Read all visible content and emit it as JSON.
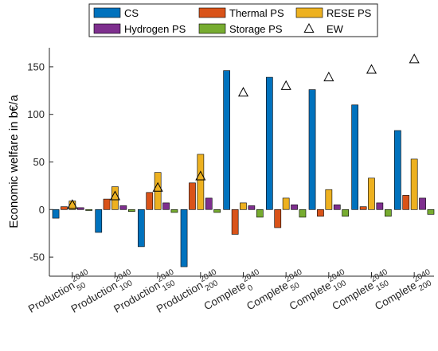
{
  "chart_data": {
    "type": "bar",
    "ylabel": "Economic welfare in b€/a",
    "ylim": [
      -70,
      170
    ],
    "yticks": [
      -50,
      0,
      50,
      100,
      150
    ],
    "grid": false,
    "legend_position": "top",
    "categories": [
      {
        "base": "Production",
        "sup": "2040",
        "sub": "50"
      },
      {
        "base": "Production",
        "sup": "2040",
        "sub": "100"
      },
      {
        "base": "Production",
        "sup": "2040",
        "sub": "150"
      },
      {
        "base": "Production",
        "sup": "2040",
        "sub": "200"
      },
      {
        "base": "Complete",
        "sup": "2040",
        "sub": "0"
      },
      {
        "base": "Complete",
        "sup": "2040",
        "sub": "50"
      },
      {
        "base": "Complete",
        "sup": "2040",
        "sub": "100"
      },
      {
        "base": "Complete",
        "sup": "2040",
        "sub": "150"
      },
      {
        "base": "Complete",
        "sup": "2040",
        "sub": "200"
      }
    ],
    "series": [
      {
        "name": "CS",
        "color": "#0072BD",
        "values": [
          -9,
          -24,
          -39,
          -60,
          146,
          139,
          126,
          110,
          83
        ]
      },
      {
        "name": "Thermal PS",
        "color": "#D95319",
        "values": [
          3,
          11,
          18,
          28,
          -26,
          -19,
          -7,
          3,
          15
        ]
      },
      {
        "name": "RESE PS",
        "color": "#EDB120",
        "values": [
          9,
          24,
          39,
          58,
          7,
          12,
          21,
          33,
          53
        ]
      },
      {
        "name": "Hydrogen PS",
        "color": "#7E2F8E",
        "values": [
          2,
          4,
          7,
          12,
          4,
          5,
          5,
          7,
          12
        ]
      },
      {
        "name": "Storage PS",
        "color": "#77AC30",
        "values": [
          -1,
          -2,
          -3,
          -3,
          -8,
          -8,
          -7,
          -7,
          -5
        ]
      }
    ],
    "markers": {
      "name": "EW",
      "symbol": "triangle",
      "values": [
        5,
        14,
        23,
        35,
        123,
        130,
        139,
        147,
        158
      ]
    }
  }
}
